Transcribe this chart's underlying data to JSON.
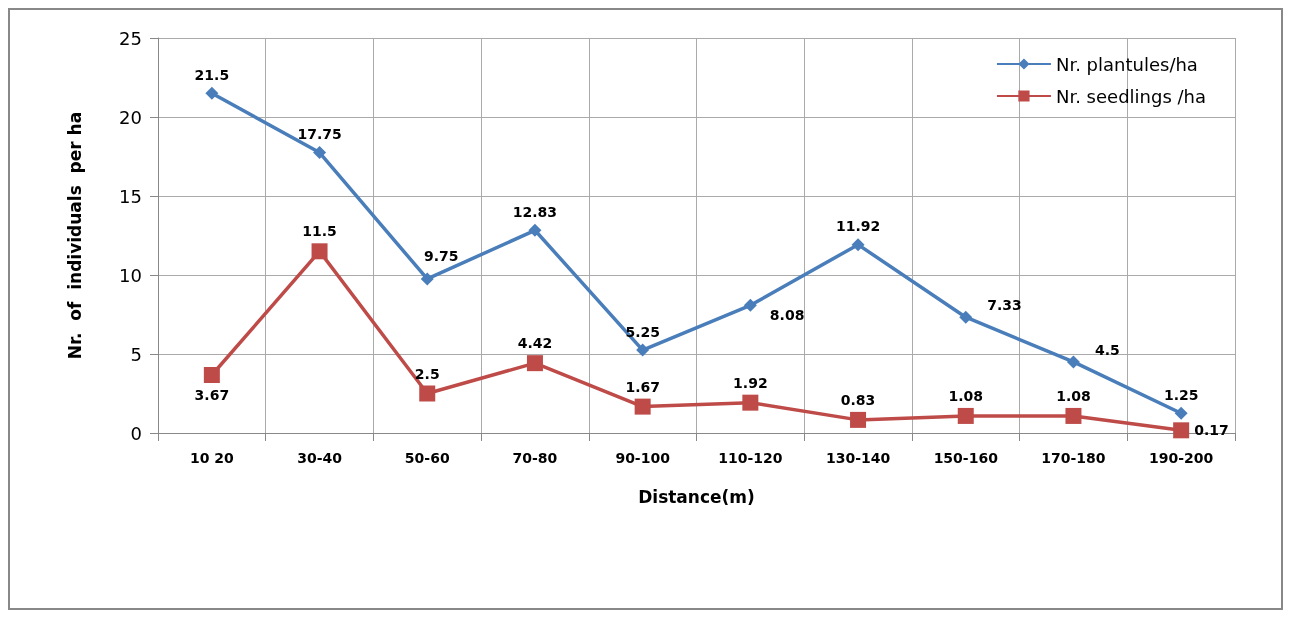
{
  "chart_data": {
    "type": "line",
    "xlabel": "Distance(m)",
    "ylabel": "Nr.  of  individuals  per ha",
    "categories": [
      "10 20",
      "30-40",
      "50-60",
      "70-80",
      "90-100",
      "110-120",
      "130-140",
      "150-160",
      "170-180",
      "190-200"
    ],
    "series": [
      {
        "name": "Nr. plantules/ha",
        "color": "#4a7ebb",
        "marker": "diamond",
        "values": [
          21.5,
          17.75,
          9.75,
          12.83,
          5.25,
          8.08,
          11.92,
          7.33,
          4.5,
          1.25
        ]
      },
      {
        "name": "Nr. seedlings /ha",
        "color": "#be4b48",
        "marker": "square",
        "values": [
          3.67,
          11.5,
          2.5,
          4.42,
          1.67,
          1.92,
          0.83,
          1.08,
          1.08,
          0.17
        ]
      }
    ],
    "ylim": [
      0,
      25
    ],
    "yticks": [
      0,
      5,
      10,
      15,
      20,
      25
    ],
    "grid": true,
    "legend": "top right",
    "data_labels": true,
    "line_style": "solid"
  }
}
